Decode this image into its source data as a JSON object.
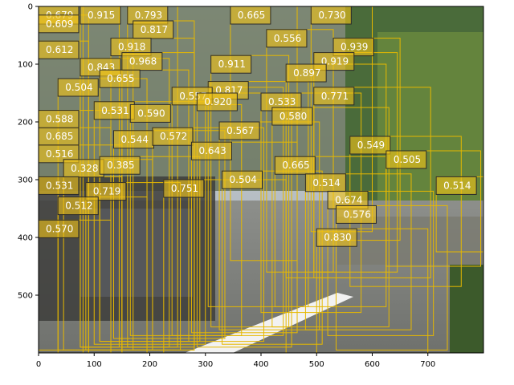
{
  "chart_data": {
    "type": "scatter",
    "title": "",
    "xlabel": "",
    "ylabel": "",
    "xlim": [
      0,
      800
    ],
    "ylim": [
      600,
      0
    ],
    "x_ticks": [
      0,
      100,
      200,
      300,
      400,
      500,
      600,
      700
    ],
    "y_ticks": [
      0,
      100,
      200,
      300,
      400,
      500
    ],
    "background": "street-scene photo: parked cars on left, trees and fence on right, road with white lane marking",
    "colors": {
      "box": "#e6b800",
      "tag_fill": "#f0c419",
      "tag_text": "#ffffff"
    },
    "detections": [
      {
        "score": "0.679",
        "x": 0,
        "y": 0,
        "w": 80,
        "h": 600
      },
      {
        "score": "0.915",
        "x": 75,
        "y": 0,
        "w": 70,
        "h": 590
      },
      {
        "score": "0.793",
        "x": 160,
        "y": 0,
        "w": 90,
        "h": 590
      },
      {
        "score": "0.665",
        "x": 345,
        "y": 0,
        "w": 120,
        "h": 440
      },
      {
        "score": "0.730",
        "x": 490,
        "y": 0,
        "w": 110,
        "h": 390
      },
      {
        "score": "0.609",
        "x": 0,
        "y": 15,
        "w": 90,
        "h": 590
      },
      {
        "score": "0.817",
        "x": 170,
        "y": 25,
        "w": 110,
        "h": 570
      },
      {
        "score": "0.556",
        "x": 410,
        "y": 40,
        "w": 120,
        "h": 420
      },
      {
        "score": "0.918",
        "x": 130,
        "y": 55,
        "w": 150,
        "h": 540
      },
      {
        "score": "0.939",
        "x": 530,
        "y": 55,
        "w": 120,
        "h": 350
      },
      {
        "score": "0.612",
        "x": 0,
        "y": 60,
        "w": 90,
        "h": 540
      },
      {
        "score": "0.919",
        "x": 495,
        "y": 80,
        "w": 150,
        "h": 380
      },
      {
        "score": "0.843",
        "x": 75,
        "y": 90,
        "w": 160,
        "h": 500
      },
      {
        "score": "0.968",
        "x": 150,
        "y": 80,
        "w": 130,
        "h": 510
      },
      {
        "score": "0.911",
        "x": 310,
        "y": 85,
        "w": 140,
        "h": 470
      },
      {
        "score": "0.897",
        "x": 445,
        "y": 100,
        "w": 180,
        "h": 370
      },
      {
        "score": "0.655",
        "x": 110,
        "y": 110,
        "w": 160,
        "h": 470
      },
      {
        "score": "0.504",
        "x": 35,
        "y": 125,
        "w": 160,
        "h": 470
      },
      {
        "score": "0.817",
        "x": 305,
        "y": 130,
        "w": 180,
        "h": 390
      },
      {
        "score": "0.557",
        "x": 240,
        "y": 140,
        "w": 200,
        "h": 430
      },
      {
        "score": "0.920",
        "x": 285,
        "y": 150,
        "w": 170,
        "h": 440
      },
      {
        "score": "0.533",
        "x": 400,
        "y": 150,
        "w": 180,
        "h": 380
      },
      {
        "score": "0.771",
        "x": 495,
        "y": 140,
        "w": 210,
        "h": 330
      },
      {
        "score": "0.531",
        "x": 100,
        "y": 165,
        "w": 200,
        "h": 420
      },
      {
        "score": "0.590",
        "x": 165,
        "y": 170,
        "w": 200,
        "h": 400
      },
      {
        "score": "0.588",
        "x": 0,
        "y": 180,
        "w": 150,
        "h": 420
      },
      {
        "score": "0.580",
        "x": 420,
        "y": 175,
        "w": 210,
        "h": 380
      },
      {
        "score": "0.567",
        "x": 325,
        "y": 200,
        "w": 180,
        "h": 360
      },
      {
        "score": "0.685",
        "x": 0,
        "y": 210,
        "w": 130,
        "h": 390
      },
      {
        "score": "0.544",
        "x": 135,
        "y": 215,
        "w": 200,
        "h": 360
      },
      {
        "score": "0.572",
        "x": 205,
        "y": 210,
        "w": 200,
        "h": 370
      },
      {
        "score": "0.643",
        "x": 275,
        "y": 235,
        "w": 190,
        "h": 330
      },
      {
        "score": "0.549",
        "x": 560,
        "y": 225,
        "w": 200,
        "h": 260
      },
      {
        "score": "0.516",
        "x": 0,
        "y": 240,
        "w": 150,
        "h": 360
      },
      {
        "score": "0.328",
        "x": 45,
        "y": 265,
        "w": 160,
        "h": 330
      },
      {
        "score": "0.385",
        "x": 110,
        "y": 260,
        "w": 180,
        "h": 320
      },
      {
        "score": "0.665",
        "x": 425,
        "y": 260,
        "w": 200,
        "h": 260
      },
      {
        "score": "0.505",
        "x": 625,
        "y": 250,
        "w": 170,
        "h": 200
      },
      {
        "score": "0.504",
        "x": 330,
        "y": 285,
        "w": 180,
        "h": 300
      },
      {
        "score": "0.514",
        "x": 480,
        "y": 290,
        "w": 190,
        "h": 270
      },
      {
        "score": "0.531",
        "x": 0,
        "y": 295,
        "w": 150,
        "h": 300
      },
      {
        "score": "0.751",
        "x": 225,
        "y": 300,
        "w": 220,
        "h": 300
      },
      {
        "score": "0.514",
        "x": 715,
        "y": 295,
        "w": 85,
        "h": 130
      },
      {
        "score": "0.719",
        "x": 85,
        "y": 305,
        "w": 170,
        "h": 290
      },
      {
        "score": "0.512",
        "x": 35,
        "y": 330,
        "w": 160,
        "h": 270
      },
      {
        "score": "0.674",
        "x": 520,
        "y": 320,
        "w": 190,
        "h": 250
      },
      {
        "score": "0.576",
        "x": 535,
        "y": 345,
        "w": 200,
        "h": 250
      },
      {
        "score": "0.570",
        "x": 0,
        "y": 370,
        "w": 130,
        "h": 230
      },
      {
        "score": "0.830",
        "x": 500,
        "y": 385,
        "w": 200,
        "h": 215
      }
    ]
  }
}
